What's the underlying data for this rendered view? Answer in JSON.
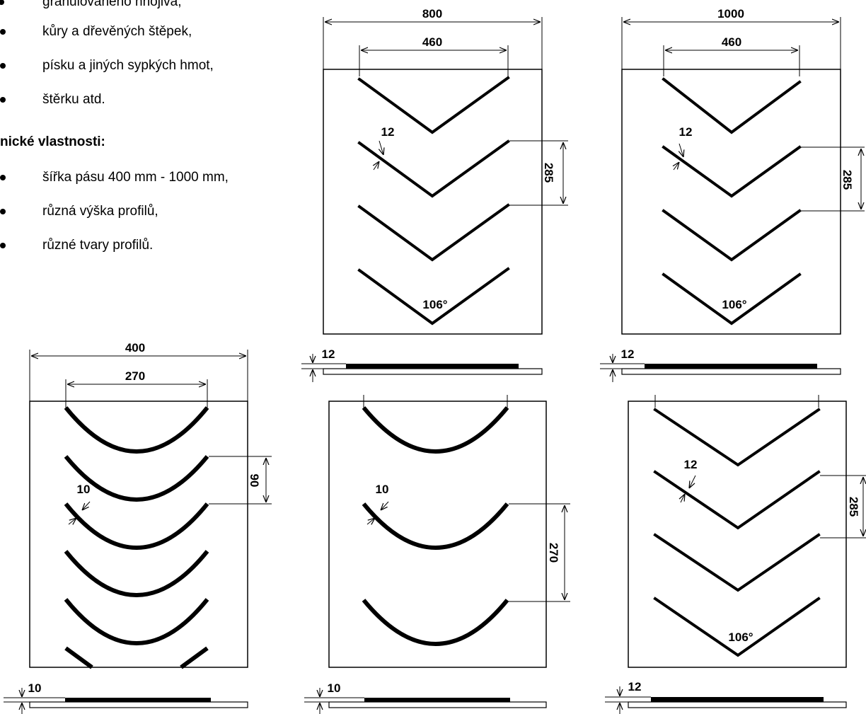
{
  "text": {
    "bullets_top": [
      "granulovaného hnojiva,",
      "kůry a dřevěných štěpek,",
      "písku a jiných sypkých hmot,",
      "štěrku atd."
    ],
    "heading": "nické vlastnosti:",
    "bullets_bottom": [
      "šířka pásu 400 mm - 1000 mm,",
      "různá výška profilů,",
      "různé tvary profilů."
    ]
  },
  "diagrams": {
    "d800": {
      "width": "800",
      "inner": "460",
      "thick": "12",
      "pitch": "285",
      "angle": "106°",
      "height": "12"
    },
    "d1000": {
      "width": "1000",
      "inner": "460",
      "thick": "12",
      "pitch": "285",
      "angle": "106°",
      "height": "12"
    },
    "d400": {
      "width": "400",
      "inner": "270",
      "thick": "10",
      "pitch": "90",
      "height": "10"
    },
    "d_curved_b": {
      "thick": "10",
      "pitch": "270",
      "height": "10"
    },
    "d_chevron_c": {
      "thick": "12",
      "pitch": "285",
      "angle": "106°",
      "height": "12"
    }
  },
  "colors": {
    "line": "#000000",
    "background": "#ffffff"
  }
}
